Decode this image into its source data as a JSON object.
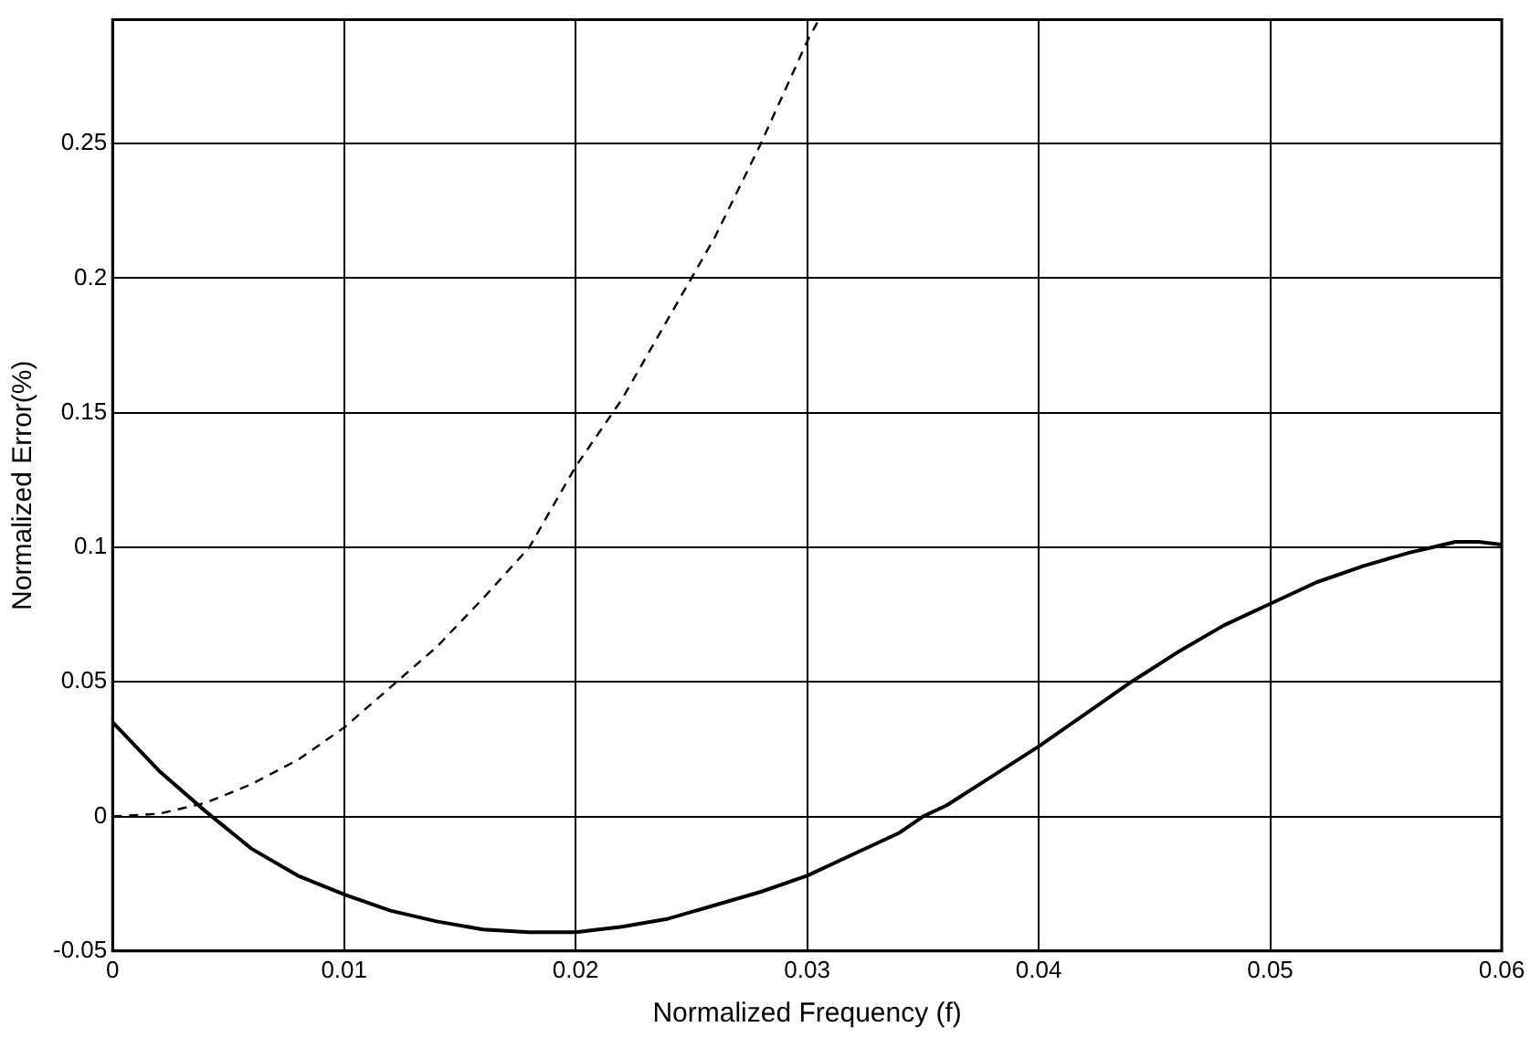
{
  "chart_data": {
    "type": "line",
    "xlabel": "Normalized Frequency (f)",
    "ylabel": "Normalized Error(%)",
    "xlim": [
      0,
      0.06
    ],
    "xticks": [
      0,
      0.01,
      0.02,
      0.03,
      0.04,
      0.05,
      0.06
    ],
    "ylim": [
      -0.05,
      0.296
    ],
    "yticks": [
      -0.05,
      0,
      0.05,
      0.1,
      0.15,
      0.2,
      0.25
    ],
    "grid": true,
    "legend": false,
    "marker": "none",
    "series": [
      {
        "color": "#000000",
        "line_style": "solid",
        "x": [
          0,
          0.002,
          0.004,
          0.006,
          0.008,
          0.01,
          0.012,
          0.014,
          0.016,
          0.018,
          0.019,
          0.02,
          0.022,
          0.024,
          0.026,
          0.028,
          0.03,
          0.032,
          0.034,
          0.035,
          0.036,
          0.038,
          0.04,
          0.042,
          0.044,
          0.046,
          0.048,
          0.05,
          0.052,
          0.054,
          0.056,
          0.057,
          0.058,
          0.059,
          0.06
        ],
        "values": [
          0.035,
          0.017,
          0.002,
          -0.012,
          -0.022,
          -0.029,
          -0.035,
          -0.039,
          -0.042,
          -0.043,
          -0.043,
          -0.043,
          -0.041,
          -0.038,
          -0.033,
          -0.028,
          -0.022,
          -0.014,
          -0.006,
          0,
          0.004,
          0.015,
          0.026,
          0.038,
          0.05,
          0.061,
          0.071,
          0.079,
          0.087,
          0.093,
          0.098,
          0.1,
          0.102,
          0.102,
          0.101
        ]
      },
      {
        "color": "#000000",
        "line_style": "dashed",
        "x": [
          0,
          0.002,
          0.004,
          0.006,
          0.008,
          0.01,
          0.012,
          0.014,
          0.016,
          0.018,
          0.02,
          0.022,
          0.024,
          0.026,
          0.028,
          0.03,
          0.0305
        ],
        "values": [
          0,
          0.001,
          0.005,
          0.012,
          0.021,
          0.033,
          0.048,
          0.063,
          0.081,
          0.1,
          0.13,
          0.155,
          0.185,
          0.215,
          0.25,
          0.288,
          0.296
        ]
      }
    ]
  }
}
